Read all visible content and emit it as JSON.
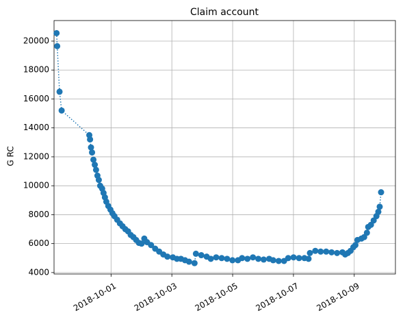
{
  "chart_data": {
    "type": "line",
    "title": "Claim account",
    "y_label": "G RC",
    "x": [
      "2018-09-29T05:00",
      "2018-09-29T05:30",
      "2018-09-29T07:20",
      "2018-09-29T09:00",
      "2018-09-30T06:50",
      "2018-09-30T07:25",
      "2018-09-30T08:10",
      "2018-09-30T09:00",
      "2018-09-30T10:05",
      "2018-09-30T11:10",
      "2018-09-30T12:10",
      "2018-09-30T13:15",
      "2018-09-30T14:20",
      "2018-09-30T15:25",
      "2018-09-30T17:00",
      "2018-09-30T18:05",
      "2018-09-30T19:10",
      "2018-09-30T20:15",
      "2018-09-30T21:50",
      "2018-09-30T23:30",
      "2018-10-01T01:05",
      "2018-10-01T02:40",
      "2018-10-01T04:50",
      "2018-10-01T07:00",
      "2018-10-01T09:05",
      "2018-10-01T11:15",
      "2018-10-01T13:25",
      "2018-10-01T15:30",
      "2018-10-01T17:40",
      "2018-10-01T19:50",
      "2018-10-01T22:00",
      "2018-10-02T00:05",
      "2018-10-02T02:15",
      "2018-10-02T04:25",
      "2018-10-02T07:35",
      "2018-10-02T10:50",
      "2018-10-02T14:00",
      "2018-10-02T17:15",
      "2018-10-02T20:30",
      "2018-10-03T00:45",
      "2018-10-03T04:00",
      "2018-10-03T07:10",
      "2018-10-03T10:25",
      "2018-10-03T13:35",
      "2018-10-03T17:55",
      "2018-10-03T19:00",
      "2018-10-03T23:15",
      "2018-10-04T03:30",
      "2018-10-04T06:45",
      "2018-10-04T11:00",
      "2018-10-04T15:20",
      "2018-10-04T19:35",
      "2018-10-04T23:50",
      "2018-10-05T04:10",
      "2018-10-05T07:25",
      "2018-10-05T11:40",
      "2018-10-05T16:00",
      "2018-10-05T20:15",
      "2018-10-06T00:30",
      "2018-10-06T04:50",
      "2018-10-06T08:00",
      "2018-10-06T12:20",
      "2018-10-06T16:35",
      "2018-10-06T19:50",
      "2018-10-07T00:05",
      "2018-10-07T04:25",
      "2018-10-07T08:40",
      "2018-10-07T11:55",
      "2018-10-07T13:00",
      "2018-10-07T17:15",
      "2018-10-07T21:30",
      "2018-10-08T01:50",
      "2018-10-08T06:05",
      "2018-10-08T10:25",
      "2018-10-08T14:40",
      "2018-10-08T16:50",
      "2018-10-08T19:00",
      "2018-10-08T21:05",
      "2018-10-08T23:15",
      "2018-10-09T00:55",
      "2018-10-09T02:30",
      "2018-10-09T05:40",
      "2018-10-09T07:50",
      "2018-10-09T10:00",
      "2018-10-09T11:00",
      "2018-10-09T13:10",
      "2018-10-09T15:20",
      "2018-10-09T17:30",
      "2018-10-09T19:00",
      "2018-10-09T20:05",
      "2018-10-09T21:10"
    ],
    "series": [
      {
        "name": "G RC",
        "color": "#1f77b4",
        "values": [
          20550,
          19650,
          16500,
          15200,
          13500,
          13200,
          12650,
          12300,
          11800,
          11450,
          11100,
          10700,
          10400,
          10000,
          9800,
          9500,
          9200,
          8900,
          8600,
          8350,
          8100,
          7900,
          7650,
          7400,
          7200,
          7000,
          6850,
          6600,
          6450,
          6250,
          6050,
          6000,
          6350,
          6100,
          5900,
          5650,
          5450,
          5250,
          5100,
          5050,
          4950,
          4950,
          4850,
          4750,
          4650,
          5300,
          5200,
          5100,
          4950,
          5050,
          5000,
          4950,
          4850,
          4850,
          5000,
          4950,
          5050,
          4950,
          4900,
          4950,
          4850,
          4800,
          4800,
          5000,
          5050,
          5000,
          5000,
          4950,
          5350,
          5500,
          5450,
          5450,
          5400,
          5350,
          5400,
          5250,
          5350,
          5500,
          5750,
          5900,
          6250,
          6350,
          6450,
          6750,
          7150,
          7300,
          7600,
          7900,
          8200,
          8550,
          9550
        ]
      }
    ],
    "xlim": [
      "2018-09-29T03:00",
      "2018-10-10T08:30"
    ],
    "xticks": [
      "2018-10-01",
      "2018-10-03",
      "2018-10-05",
      "2018-10-07",
      "2018-10-09"
    ],
    "ylim": [
      3900,
      21420
    ],
    "yticks": [
      4000,
      6000,
      8000,
      10000,
      12000,
      14000,
      16000,
      18000,
      20000
    ],
    "grid": true
  }
}
